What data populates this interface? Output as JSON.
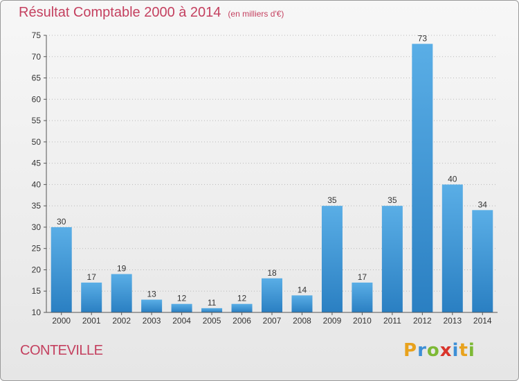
{
  "title": "Résultat Comptable 2000 à 2014",
  "subtitle": "(en milliers d'€)",
  "commune": "CONTEVILLE",
  "logo": {
    "letters": [
      "P",
      "r",
      "o",
      "x",
      "i",
      "t",
      "i"
    ],
    "colors": [
      "#e8a21d",
      "#3d8fd6",
      "#7db935",
      "#d9342b",
      "#3d8fd6",
      "#e8a21d",
      "#7db935"
    ]
  },
  "colors": {
    "bar_light": "#5aaee6",
    "bar_dark": "#2a7fc2",
    "title": "#c4405f",
    "grid": "#b8b8b8"
  },
  "chart_data": {
    "type": "bar",
    "categories": [
      "2000",
      "2001",
      "2002",
      "2003",
      "2004",
      "2005",
      "2006",
      "2007",
      "2008",
      "2009",
      "2010",
      "2011",
      "2012",
      "2013",
      "2014"
    ],
    "values": [
      30,
      17,
      19,
      13,
      12,
      11,
      12,
      18,
      14,
      35,
      17,
      35,
      73,
      40,
      34
    ],
    "ylim": [
      10,
      75
    ],
    "yticks": [
      10,
      15,
      20,
      25,
      30,
      35,
      40,
      45,
      50,
      55,
      60,
      65,
      70,
      75
    ],
    "grid": true,
    "title": "Résultat Comptable 2000 à 2014",
    "xlabel": "",
    "ylabel": ""
  }
}
